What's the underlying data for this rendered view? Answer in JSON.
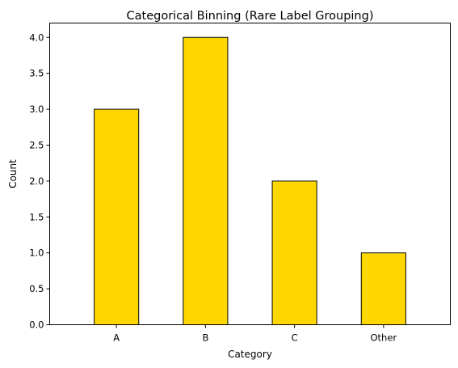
{
  "chart_data": {
    "type": "bar",
    "title": "Categorical Binning (Rare Label Grouping)",
    "xlabel": "Category",
    "ylabel": "Count",
    "categories": [
      "A",
      "B",
      "C",
      "Other"
    ],
    "values": [
      3,
      4,
      2,
      1
    ],
    "ylim": [
      0,
      4.2
    ],
    "yticks": [
      "0.0",
      "0.5",
      "1.0",
      "1.5",
      "2.0",
      "2.5",
      "3.0",
      "3.5",
      "4.0"
    ],
    "bar_color": "#FFD700",
    "edge_color": "#000000",
    "grid": false,
    "legend": "none"
  }
}
